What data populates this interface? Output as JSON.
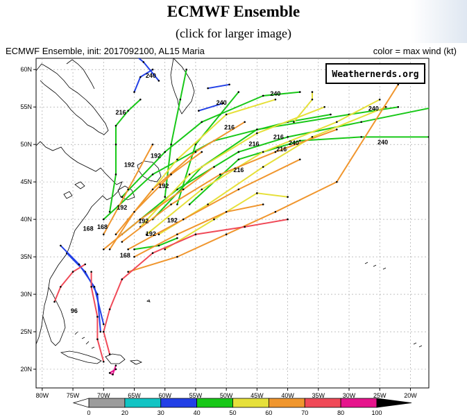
{
  "page": {
    "title": "ECMWF Ensemble",
    "subtitle": "(click for larger image)"
  },
  "map": {
    "header_left": "ECMWF Ensemble, init: 2017092100, AL15 Maria",
    "header_right": "color = max wind (kt)",
    "badge": "Weathernerds.org",
    "lon_ticks": [
      "80W",
      "75W",
      "70W",
      "65W",
      "60W",
      "55W",
      "50W",
      "45W",
      "40W",
      "35W",
      "30W",
      "25W",
      "20W"
    ],
    "lat_ticks": [
      "60N",
      "55N",
      "50N",
      "45N",
      "40N",
      "35N",
      "30N",
      "25N",
      "20N"
    ],
    "lon_range": [
      -81,
      -17
    ],
    "lat_range": [
      17.5,
      61.5
    ],
    "grid": true,
    "hour_labels": [
      {
        "text": "240",
        "lon": -62.3,
        "lat": 58.9
      },
      {
        "text": "240",
        "lon": -42.0,
        "lat": 56.5
      },
      {
        "text": "240",
        "lon": -50.8,
        "lat": 55.3
      },
      {
        "text": "240",
        "lon": -26.0,
        "lat": 54.5
      },
      {
        "text": "240",
        "lon": -24.5,
        "lat": 50.0
      },
      {
        "text": "240",
        "lon": -39.0,
        "lat": 49.9
      },
      {
        "text": "216",
        "lon": -67.2,
        "lat": 54.0
      },
      {
        "text": "216",
        "lon": -49.5,
        "lat": 52.0
      },
      {
        "text": "216",
        "lon": -41.5,
        "lat": 50.7
      },
      {
        "text": "216",
        "lon": -45.5,
        "lat": 49.8
      },
      {
        "text": "216",
        "lon": -41.0,
        "lat": 49.1
      },
      {
        "text": "216",
        "lon": -48.0,
        "lat": 46.3
      },
      {
        "text": "192",
        "lon": -65.8,
        "lat": 47.0
      },
      {
        "text": "192",
        "lon": -61.5,
        "lat": 48.2
      },
      {
        "text": "192",
        "lon": -60.2,
        "lat": 44.2
      },
      {
        "text": "192",
        "lon": -67.0,
        "lat": 41.3
      },
      {
        "text": "192",
        "lon": -63.5,
        "lat": 39.5
      },
      {
        "text": "192",
        "lon": -58.8,
        "lat": 39.6
      },
      {
        "text": "192",
        "lon": -62.3,
        "lat": 37.8
      },
      {
        "text": "168",
        "lon": -72.5,
        "lat": 38.5
      },
      {
        "text": "168",
        "lon": -70.2,
        "lat": 38.7
      },
      {
        "text": "168",
        "lon": -66.5,
        "lat": 34.9
      },
      {
        "text": "96",
        "lon": -74.8,
        "lat": 27.5
      }
    ],
    "tracks": [
      {
        "wind": 35,
        "points": [
          [
            -70.5,
            25
          ],
          [
            -71,
            30
          ],
          [
            -73,
            33
          ],
          [
            -76,
            35.5
          ]
        ]
      },
      {
        "wind": 35,
        "points": [
          [
            -70,
            26
          ],
          [
            -71.5,
            31
          ],
          [
            -74,
            34
          ],
          [
            -77,
            36.5
          ]
        ]
      },
      {
        "wind": 35,
        "points": [
          [
            -65,
            57
          ],
          [
            -64,
            59
          ],
          [
            -62,
            60
          ]
        ]
      },
      {
        "wind": 35,
        "points": [
          [
            -61,
            58.5
          ],
          [
            -63.5,
            61
          ],
          [
            -65,
            62
          ]
        ]
      },
      {
        "wind": 35,
        "points": [
          [
            -54.5,
            54.5
          ],
          [
            -50.5,
            55.5
          ]
        ]
      },
      {
        "wind": 35,
        "points": [
          [
            -53,
            57.5
          ],
          [
            -49.5,
            58
          ]
        ]
      },
      {
        "wind": 45,
        "points": [
          [
            -69,
            41
          ],
          [
            -68,
            46
          ],
          [
            -68,
            50
          ],
          [
            -68,
            52.5
          ],
          [
            -66,
            54.5
          ],
          [
            -64,
            56
          ]
        ]
      },
      {
        "wind": 45,
        "points": [
          [
            -60,
            43
          ],
          [
            -59,
            50
          ],
          [
            -57.5,
            56
          ],
          [
            -56.5,
            60
          ]
        ]
      },
      {
        "wind": 45,
        "points": [
          [
            -58,
            42
          ],
          [
            -55,
            50
          ],
          [
            -51,
            54
          ],
          [
            -48,
            57
          ]
        ]
      },
      {
        "wind": 45,
        "points": [
          [
            -67,
            43
          ],
          [
            -60,
            49
          ],
          [
            -54,
            53
          ],
          [
            -44,
            56.5
          ],
          [
            -38,
            57
          ]
        ]
      },
      {
        "wind": 45,
        "points": [
          [
            -70,
            40
          ],
          [
            -62,
            46
          ],
          [
            -52,
            50.5
          ],
          [
            -40,
            53
          ],
          [
            -33,
            54
          ]
        ]
      },
      {
        "wind": 45,
        "points": [
          [
            -62,
            40
          ],
          [
            -54,
            47
          ],
          [
            -45,
            52
          ],
          [
            -30,
            54
          ],
          [
            -22,
            55
          ]
        ]
      },
      {
        "wind": 45,
        "points": [
          [
            -56,
            42
          ],
          [
            -48,
            48
          ],
          [
            -38,
            50.5
          ],
          [
            -28,
            51
          ],
          [
            -17,
            51
          ]
        ]
      },
      {
        "wind": 45,
        "points": [
          [
            -67,
            38
          ],
          [
            -58,
            44
          ],
          [
            -48,
            49
          ],
          [
            -40,
            51
          ],
          [
            -28,
            53
          ],
          [
            -16,
            55
          ]
        ]
      },
      {
        "wind": 45,
        "points": [
          [
            -65,
            36
          ],
          [
            -61,
            36.5
          ],
          [
            -58,
            37.5
          ]
        ]
      },
      {
        "wind": 55,
        "points": [
          [
            -66,
            40
          ],
          [
            -58,
            48
          ],
          [
            -50,
            54
          ],
          [
            -42,
            56
          ]
        ]
      },
      {
        "wind": 55,
        "points": [
          [
            -64,
            39
          ],
          [
            -56,
            46
          ],
          [
            -45,
            51.5
          ],
          [
            -34,
            55
          ]
        ]
      },
      {
        "wind": 55,
        "points": [
          [
            -63,
            38
          ],
          [
            -54,
            44
          ],
          [
            -44,
            49
          ],
          [
            -32,
            53
          ],
          [
            -25,
            56
          ]
        ]
      },
      {
        "wind": 55,
        "points": [
          [
            -61,
            38
          ],
          [
            -53,
            42
          ],
          [
            -44,
            47
          ],
          [
            -36,
            51
          ],
          [
            -24,
            55
          ]
        ]
      },
      {
        "wind": 55,
        "points": [
          [
            -60,
            36
          ],
          [
            -52,
            40
          ],
          [
            -45,
            43.5
          ],
          [
            -40,
            43
          ]
        ]
      },
      {
        "wind": 55,
        "points": [
          [
            -39,
            53
          ],
          [
            -36,
            56
          ],
          [
            -36,
            57
          ]
        ]
      },
      {
        "wind": 65,
        "points": [
          [
            -68,
            38
          ],
          [
            -62,
            44
          ],
          [
            -55,
            49
          ],
          [
            -47,
            53
          ]
        ]
      },
      {
        "wind": 65,
        "points": [
          [
            -67,
            37
          ],
          [
            -59,
            42
          ],
          [
            -51,
            46
          ],
          [
            -42,
            49
          ],
          [
            -32,
            52
          ]
        ]
      },
      {
        "wind": 65,
        "points": [
          [
            -66,
            36
          ],
          [
            -57,
            40
          ],
          [
            -48,
            44
          ],
          [
            -38,
            48
          ]
        ]
      },
      {
        "wind": 65,
        "points": [
          [
            -69,
            36
          ],
          [
            -65,
            41
          ],
          [
            -59,
            46
          ],
          [
            -54,
            49
          ]
        ]
      },
      {
        "wind": 65,
        "points": [
          [
            -70,
            38
          ],
          [
            -66,
            44
          ],
          [
            -62,
            50
          ]
        ]
      },
      {
        "wind": 65,
        "points": [
          [
            -65,
            35
          ],
          [
            -58,
            38
          ],
          [
            -50,
            41
          ],
          [
            -44,
            42
          ]
        ]
      },
      {
        "wind": 65,
        "points": [
          [
            -70,
            36
          ],
          [
            -64,
            40
          ],
          [
            -57,
            44
          ],
          [
            -52,
            47
          ]
        ]
      },
      {
        "wind": 65,
        "points": [
          [
            -66,
            33
          ],
          [
            -58,
            35
          ],
          [
            -50,
            38
          ],
          [
            -42,
            41
          ],
          [
            -32,
            45
          ],
          [
            -22,
            58
          ]
        ]
      },
      {
        "wind": 75,
        "points": [
          [
            -69,
            22
          ],
          [
            -70,
            25
          ],
          [
            -69,
            28
          ],
          [
            -67,
            32
          ],
          [
            -62,
            35.5
          ],
          [
            -55,
            38
          ],
          [
            -47,
            39
          ],
          [
            -40,
            40
          ]
        ]
      },
      {
        "wind": 75,
        "points": [
          [
            -70,
            21
          ],
          [
            -71,
            24
          ],
          [
            -71,
            27
          ],
          [
            -72,
            31
          ],
          [
            -72,
            33
          ]
        ]
      },
      {
        "wind": 75,
        "points": [
          [
            -73,
            34
          ],
          [
            -75,
            33
          ],
          [
            -77,
            31
          ],
          [
            -78,
            29
          ]
        ]
      },
      {
        "wind": 90,
        "points": [
          [
            -68,
            20
          ],
          [
            -69,
            19.5
          ],
          [
            -68.5,
            19.3
          ],
          [
            -68,
            20.5
          ]
        ]
      }
    ]
  }
}
